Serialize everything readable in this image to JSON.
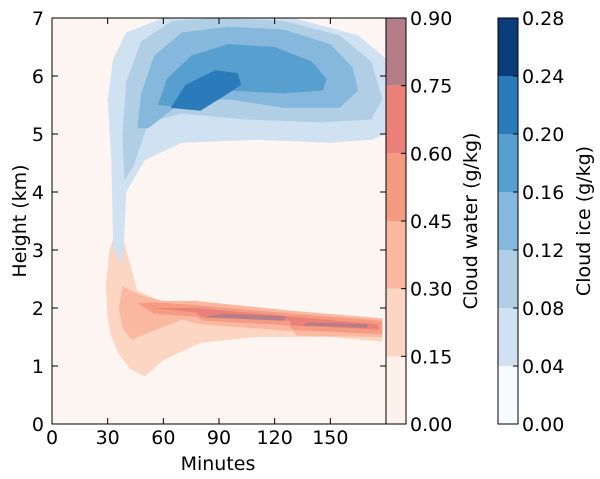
{
  "chart_data": {
    "type": "contour",
    "xlabel": "Minutes",
    "ylabel": "Height (km)",
    "xlim": [
      0,
      180
    ],
    "ylim": [
      0,
      7
    ],
    "xticks": [
      "0",
      "30",
      "60",
      "90",
      "120",
      "150"
    ],
    "yticks": [
      "0",
      "1",
      "2",
      "3",
      "4",
      "5",
      "6",
      "7"
    ],
    "grid": false,
    "series": [
      {
        "name": "Cloud water (g/kg)",
        "colormap": "Reds",
        "levels": [
          0.0,
          0.15,
          0.3,
          0.45,
          0.6,
          0.75,
          0.9
        ],
        "level_labels": [
          "0.00",
          "0.15",
          "0.30",
          "0.45",
          "0.60",
          "0.75",
          "0.90"
        ],
        "level_colors": [
          "#fdf1ec",
          "#fcd5c3",
          "#fbb8a0",
          "#f59b82",
          "#ea8079",
          "#b47d88"
        ],
        "contours": [
          {
            "level": 0.15,
            "x": [
              37,
              34,
              31,
              29,
              30,
              32,
              36,
              42,
              50,
              60,
              80,
              110,
              150,
              178,
              178,
              140,
              110,
              82,
              60,
              46,
              40
            ],
            "y": [
              3.35,
              3.3,
              3.0,
              2.4,
              1.8,
              1.5,
              1.2,
              0.95,
              0.82,
              1.1,
              1.4,
              1.5,
              1.5,
              1.42,
              1.75,
              1.85,
              1.95,
              2.05,
              2.1,
              2.3,
              3.0
            ]
          },
          {
            "level": 0.3,
            "x": [
              38,
              36,
              38,
              43,
              50,
              70,
              80,
              130,
              132,
              178,
              178,
              130,
              78,
              60,
              50,
              41
            ],
            "y": [
              2.38,
              2.0,
              1.65,
              1.45,
              1.55,
              1.8,
              1.72,
              1.6,
              1.52,
              1.5,
              1.82,
              1.95,
              2.12,
              2.12,
              2.2,
              2.32
            ]
          },
          {
            "level": 0.45,
            "x": [
              46,
              55,
              78,
              82,
              128,
              130,
              178,
              178,
              130,
              78,
              55
            ],
            "y": [
              2.08,
              1.9,
              1.85,
              1.78,
              1.7,
              1.62,
              1.55,
              1.78,
              1.9,
              2.05,
              2.1
            ]
          },
          {
            "level": 0.6,
            "x": [
              55,
              78,
              80,
              128,
              129,
              176,
              176,
              130,
              78
            ],
            "y": [
              2.0,
              1.92,
              1.85,
              1.78,
              1.7,
              1.63,
              1.72,
              1.85,
              2.0
            ]
          },
          {
            "level": 0.75,
            "x": [
              82,
              125,
              126,
              92
            ],
            "y": [
              1.84,
              1.78,
              1.86,
              1.9
            ]
          },
          {
            "level": 0.75,
            "x": [
              135,
              170,
              170,
              138
            ],
            "y": [
              1.7,
              1.66,
              1.72,
              1.75
            ]
          }
        ]
      },
      {
        "name": "Cloud ice (g/kg)",
        "colormap": "Blues",
        "levels": [
          0.0,
          0.04,
          0.08,
          0.12,
          0.16,
          0.2,
          0.24,
          0.28
        ],
        "level_labels": [
          "0.00",
          "0.04",
          "0.08",
          "0.12",
          "0.16",
          "0.20",
          "0.24",
          "0.28"
        ],
        "level_colors": [
          "#f7fbff",
          "#d0e1f2",
          "#b0cfe4",
          "#85b8dc",
          "#569fce",
          "#2b7bba",
          "#0b3d7a"
        ],
        "contours": [
          {
            "level": 0.04,
            "x": [
              33,
              32,
              30,
              33,
              40,
              60,
              90,
              130,
              165,
              180,
              180,
              172,
              150,
              110,
              70,
              50,
              40,
              39,
              38,
              36
            ],
            "y": [
              3.05,
              4.5,
              5.6,
              6.3,
              6.75,
              7.0,
              7.0,
              7.0,
              6.7,
              6.3,
              5.0,
              4.9,
              4.85,
              4.9,
              4.85,
              4.55,
              4.0,
              3.3,
              2.8,
              2.85
            ]
          },
          {
            "level": 0.08,
            "x": [
              39,
              38,
              40,
              48,
              65,
              90,
              125,
              155,
              172,
              178,
              172,
              145,
              105,
              70,
              52,
              44
            ],
            "y": [
              4.2,
              5.0,
              5.9,
              6.6,
              6.95,
              7.0,
              6.95,
              6.7,
              6.25,
              5.6,
              5.25,
              5.2,
              5.25,
              5.35,
              5.2,
              4.45
            ]
          },
          {
            "level": 0.12,
            "x": [
              46,
              48,
              55,
              70,
              95,
              125,
              150,
              162,
              165,
              155,
              125,
              95,
              70,
              52
            ],
            "y": [
              5.1,
              5.7,
              6.35,
              6.75,
              6.85,
              6.8,
              6.55,
              6.15,
              5.75,
              5.45,
              5.45,
              5.6,
              5.55,
              5.1
            ]
          },
          {
            "level": 0.16,
            "x": [
              57,
              62,
              75,
              95,
              120,
              140,
              148,
              146,
              125,
              95,
              75
            ],
            "y": [
              5.5,
              5.95,
              6.35,
              6.55,
              6.5,
              6.25,
              5.95,
              5.75,
              5.7,
              5.75,
              5.45
            ]
          },
          {
            "level": 0.2,
            "x": [
              64,
              72,
              88,
              100,
              102,
              95,
              80
            ],
            "y": [
              5.45,
              5.85,
              6.1,
              6.05,
              5.85,
              5.7,
              5.4
            ]
          }
        ]
      }
    ]
  }
}
